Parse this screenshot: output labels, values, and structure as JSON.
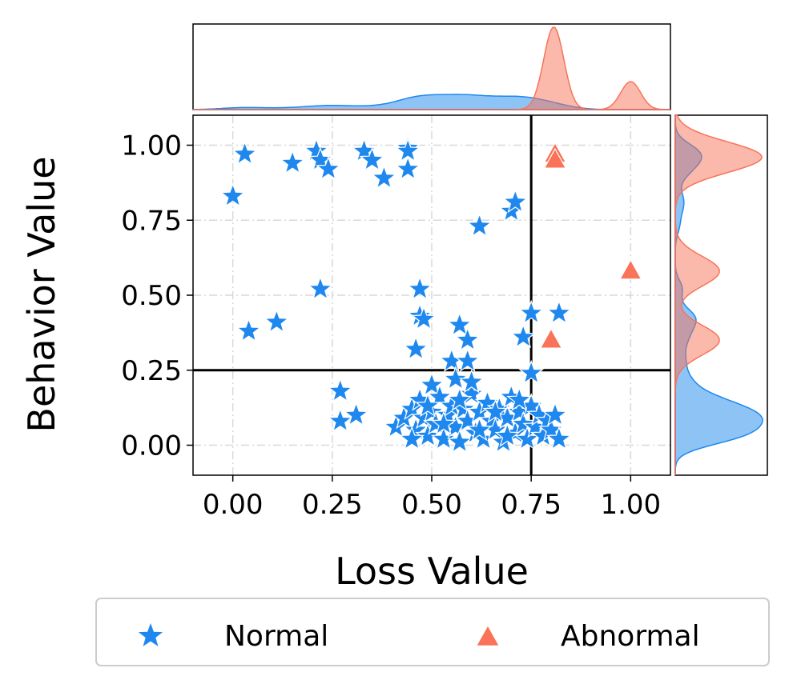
{
  "chart_data": {
    "type": "scatter",
    "title": "",
    "xlabel": "Loss Value",
    "ylabel": "Behavior Value",
    "xlim": [
      -0.1,
      1.1
    ],
    "ylim": [
      -0.1,
      1.1
    ],
    "xticks": [
      "0.00",
      "0.25",
      "0.50",
      "0.75",
      "1.00"
    ],
    "yticks": [
      "0.00",
      "0.25",
      "0.50",
      "0.75",
      "1.00"
    ],
    "xtick_values": [
      0,
      0.25,
      0.5,
      0.75,
      1.0
    ],
    "ytick_values": [
      0,
      0.25,
      0.5,
      0.75,
      1.0
    ],
    "grid": true,
    "threshold_lines": {
      "x": 0.75,
      "y": 0.25
    },
    "marginal_distributions": {
      "top": "kde by loss value",
      "right": "kde by behavior value"
    },
    "legend_position": "bottom",
    "colors": {
      "normal": "#1e88ee",
      "abnormal": "#f87358",
      "line": "#000000"
    },
    "series": [
      {
        "name": "Normal",
        "marker": "star",
        "color": "#1e88ee",
        "points": [
          [
            0.0,
            0.83
          ],
          [
            0.03,
            0.97
          ],
          [
            0.15,
            0.94
          ],
          [
            0.21,
            0.98
          ],
          [
            0.22,
            0.95
          ],
          [
            0.24,
            0.92
          ],
          [
            0.33,
            0.98
          ],
          [
            0.35,
            0.95
          ],
          [
            0.38,
            0.89
          ],
          [
            0.44,
            0.99
          ],
          [
            0.44,
            0.92
          ],
          [
            0.44,
            0.98
          ],
          [
            0.62,
            0.73
          ],
          [
            0.7,
            0.78
          ],
          [
            0.71,
            0.81
          ],
          [
            0.04,
            0.38
          ],
          [
            0.11,
            0.41
          ],
          [
            0.22,
            0.52
          ],
          [
            0.47,
            0.52
          ],
          [
            0.47,
            0.43
          ],
          [
            0.48,
            0.42
          ],
          [
            0.46,
            0.32
          ],
          [
            0.57,
            0.4
          ],
          [
            0.59,
            0.35
          ],
          [
            0.55,
            0.28
          ],
          [
            0.59,
            0.28
          ],
          [
            0.73,
            0.36
          ],
          [
            0.75,
            0.44
          ],
          [
            0.82,
            0.44
          ],
          [
            0.75,
            0.24
          ],
          [
            0.27,
            0.18
          ],
          [
            0.27,
            0.08
          ],
          [
            0.31,
            0.1
          ],
          [
            0.41,
            0.06
          ],
          [
            0.43,
            0.09
          ],
          [
            0.45,
            0.12
          ],
          [
            0.46,
            0.05
          ],
          [
            0.47,
            0.15
          ],
          [
            0.48,
            0.09
          ],
          [
            0.49,
            0.03
          ],
          [
            0.5,
            0.2
          ],
          [
            0.5,
            0.11
          ],
          [
            0.51,
            0.07
          ],
          [
            0.52,
            0.16
          ],
          [
            0.53,
            0.02
          ],
          [
            0.54,
            0.1
          ],
          [
            0.55,
            0.13
          ],
          [
            0.56,
            0.06
          ],
          [
            0.56,
            0.22
          ],
          [
            0.57,
            0.01
          ],
          [
            0.58,
            0.12
          ],
          [
            0.59,
            0.08
          ],
          [
            0.6,
            0.17
          ],
          [
            0.61,
            0.04
          ],
          [
            0.62,
            0.11
          ],
          [
            0.63,
            0.02
          ],
          [
            0.64,
            0.14
          ],
          [
            0.65,
            0.08
          ],
          [
            0.66,
            0.05
          ],
          [
            0.67,
            0.12
          ],
          [
            0.68,
            0.01
          ],
          [
            0.69,
            0.09
          ],
          [
            0.7,
            0.16
          ],
          [
            0.71,
            0.04
          ],
          [
            0.72,
            0.11
          ],
          [
            0.73,
            0.07
          ],
          [
            0.74,
            0.02
          ],
          [
            0.75,
            0.13
          ],
          [
            0.76,
            0.06
          ],
          [
            0.77,
            0.1
          ],
          [
            0.78,
            0.03
          ],
          [
            0.79,
            0.08
          ],
          [
            0.8,
            0.05
          ],
          [
            0.81,
            0.1
          ],
          [
            0.82,
            0.02
          ],
          [
            0.53,
            0.07
          ],
          [
            0.57,
            0.15
          ],
          [
            0.62,
            0.05
          ],
          [
            0.66,
            0.11
          ],
          [
            0.69,
            0.03
          ],
          [
            0.72,
            0.15
          ],
          [
            0.49,
            0.13
          ],
          [
            0.45,
            0.02
          ],
          [
            0.6,
            0.21
          ]
        ]
      },
      {
        "name": "Abnormal",
        "marker": "triangle",
        "color": "#f87358",
        "points": [
          [
            0.81,
            0.97
          ],
          [
            0.81,
            0.95
          ],
          [
            1.0,
            0.58
          ],
          [
            0.8,
            0.35
          ]
        ]
      }
    ]
  }
}
